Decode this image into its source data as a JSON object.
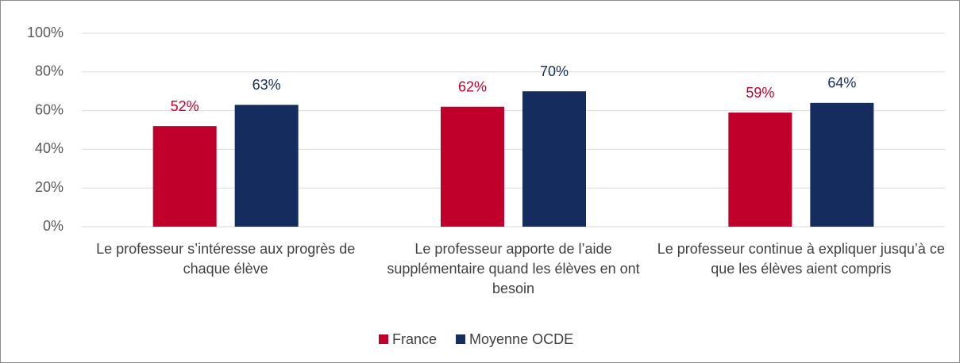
{
  "chart_data": {
    "type": "bar",
    "categories": [
      "Le professeur s’intéresse aux progrès de chaque élève",
      "Le professeur apporte de l’aide supplémentaire quand les élèves en ont besoin",
      "Le professeur continue à expliquer jusqu’à ce que les élèves aient compris"
    ],
    "series": [
      {
        "name": "France",
        "color": "#c0002b",
        "values": [
          52,
          62,
          59
        ],
        "value_labels": [
          "52%",
          "62%",
          "59%"
        ]
      },
      {
        "name": "Moyenne OCDE",
        "color": "#142d5e",
        "values": [
          63,
          70,
          64
        ],
        "value_labels": [
          "63%",
          "70%",
          "64%"
        ]
      }
    ],
    "ylim": [
      0,
      100
    ],
    "yticks": [
      {
        "value": 0,
        "label": "0%"
      },
      {
        "value": 20,
        "label": "20%"
      },
      {
        "value": 40,
        "label": "40%"
      },
      {
        "value": 60,
        "label": "60%"
      },
      {
        "value": 80,
        "label": "80%"
      },
      {
        "value": 100,
        "label": "100%"
      }
    ],
    "grid": true,
    "legend": "bottom"
  }
}
